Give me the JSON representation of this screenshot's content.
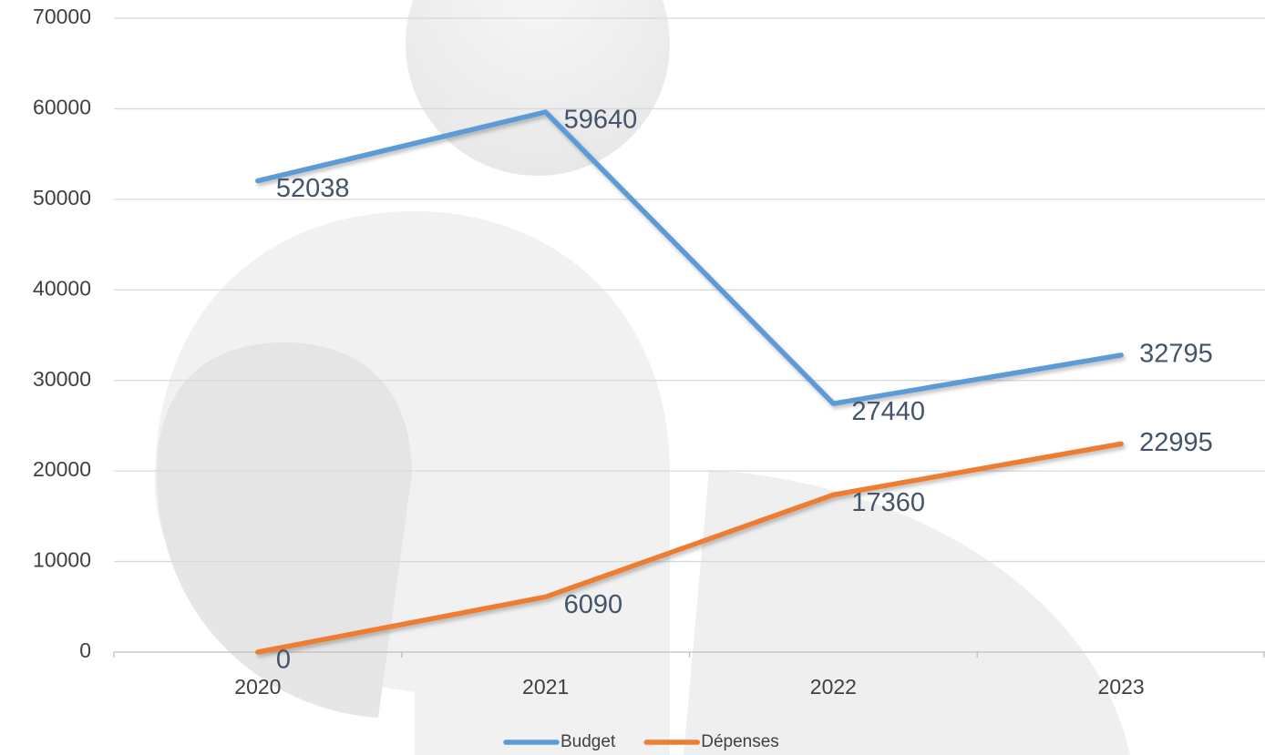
{
  "chart_data": {
    "type": "line",
    "categories": [
      "2020",
      "2021",
      "2022",
      "2023"
    ],
    "series": [
      {
        "name": "Budget",
        "color": "#5b9bd5",
        "values": [
          52038,
          59640,
          27440,
          32795
        ]
      },
      {
        "name": "Dépenses",
        "color": "#ed7d31",
        "values": [
          0,
          6090,
          17360,
          22995
        ]
      }
    ],
    "ylim": [
      0,
      70000
    ],
    "yticks": [
      0,
      10000,
      20000,
      30000,
      40000,
      50000,
      60000,
      70000
    ],
    "grid": true,
    "legend": "bottom"
  }
}
